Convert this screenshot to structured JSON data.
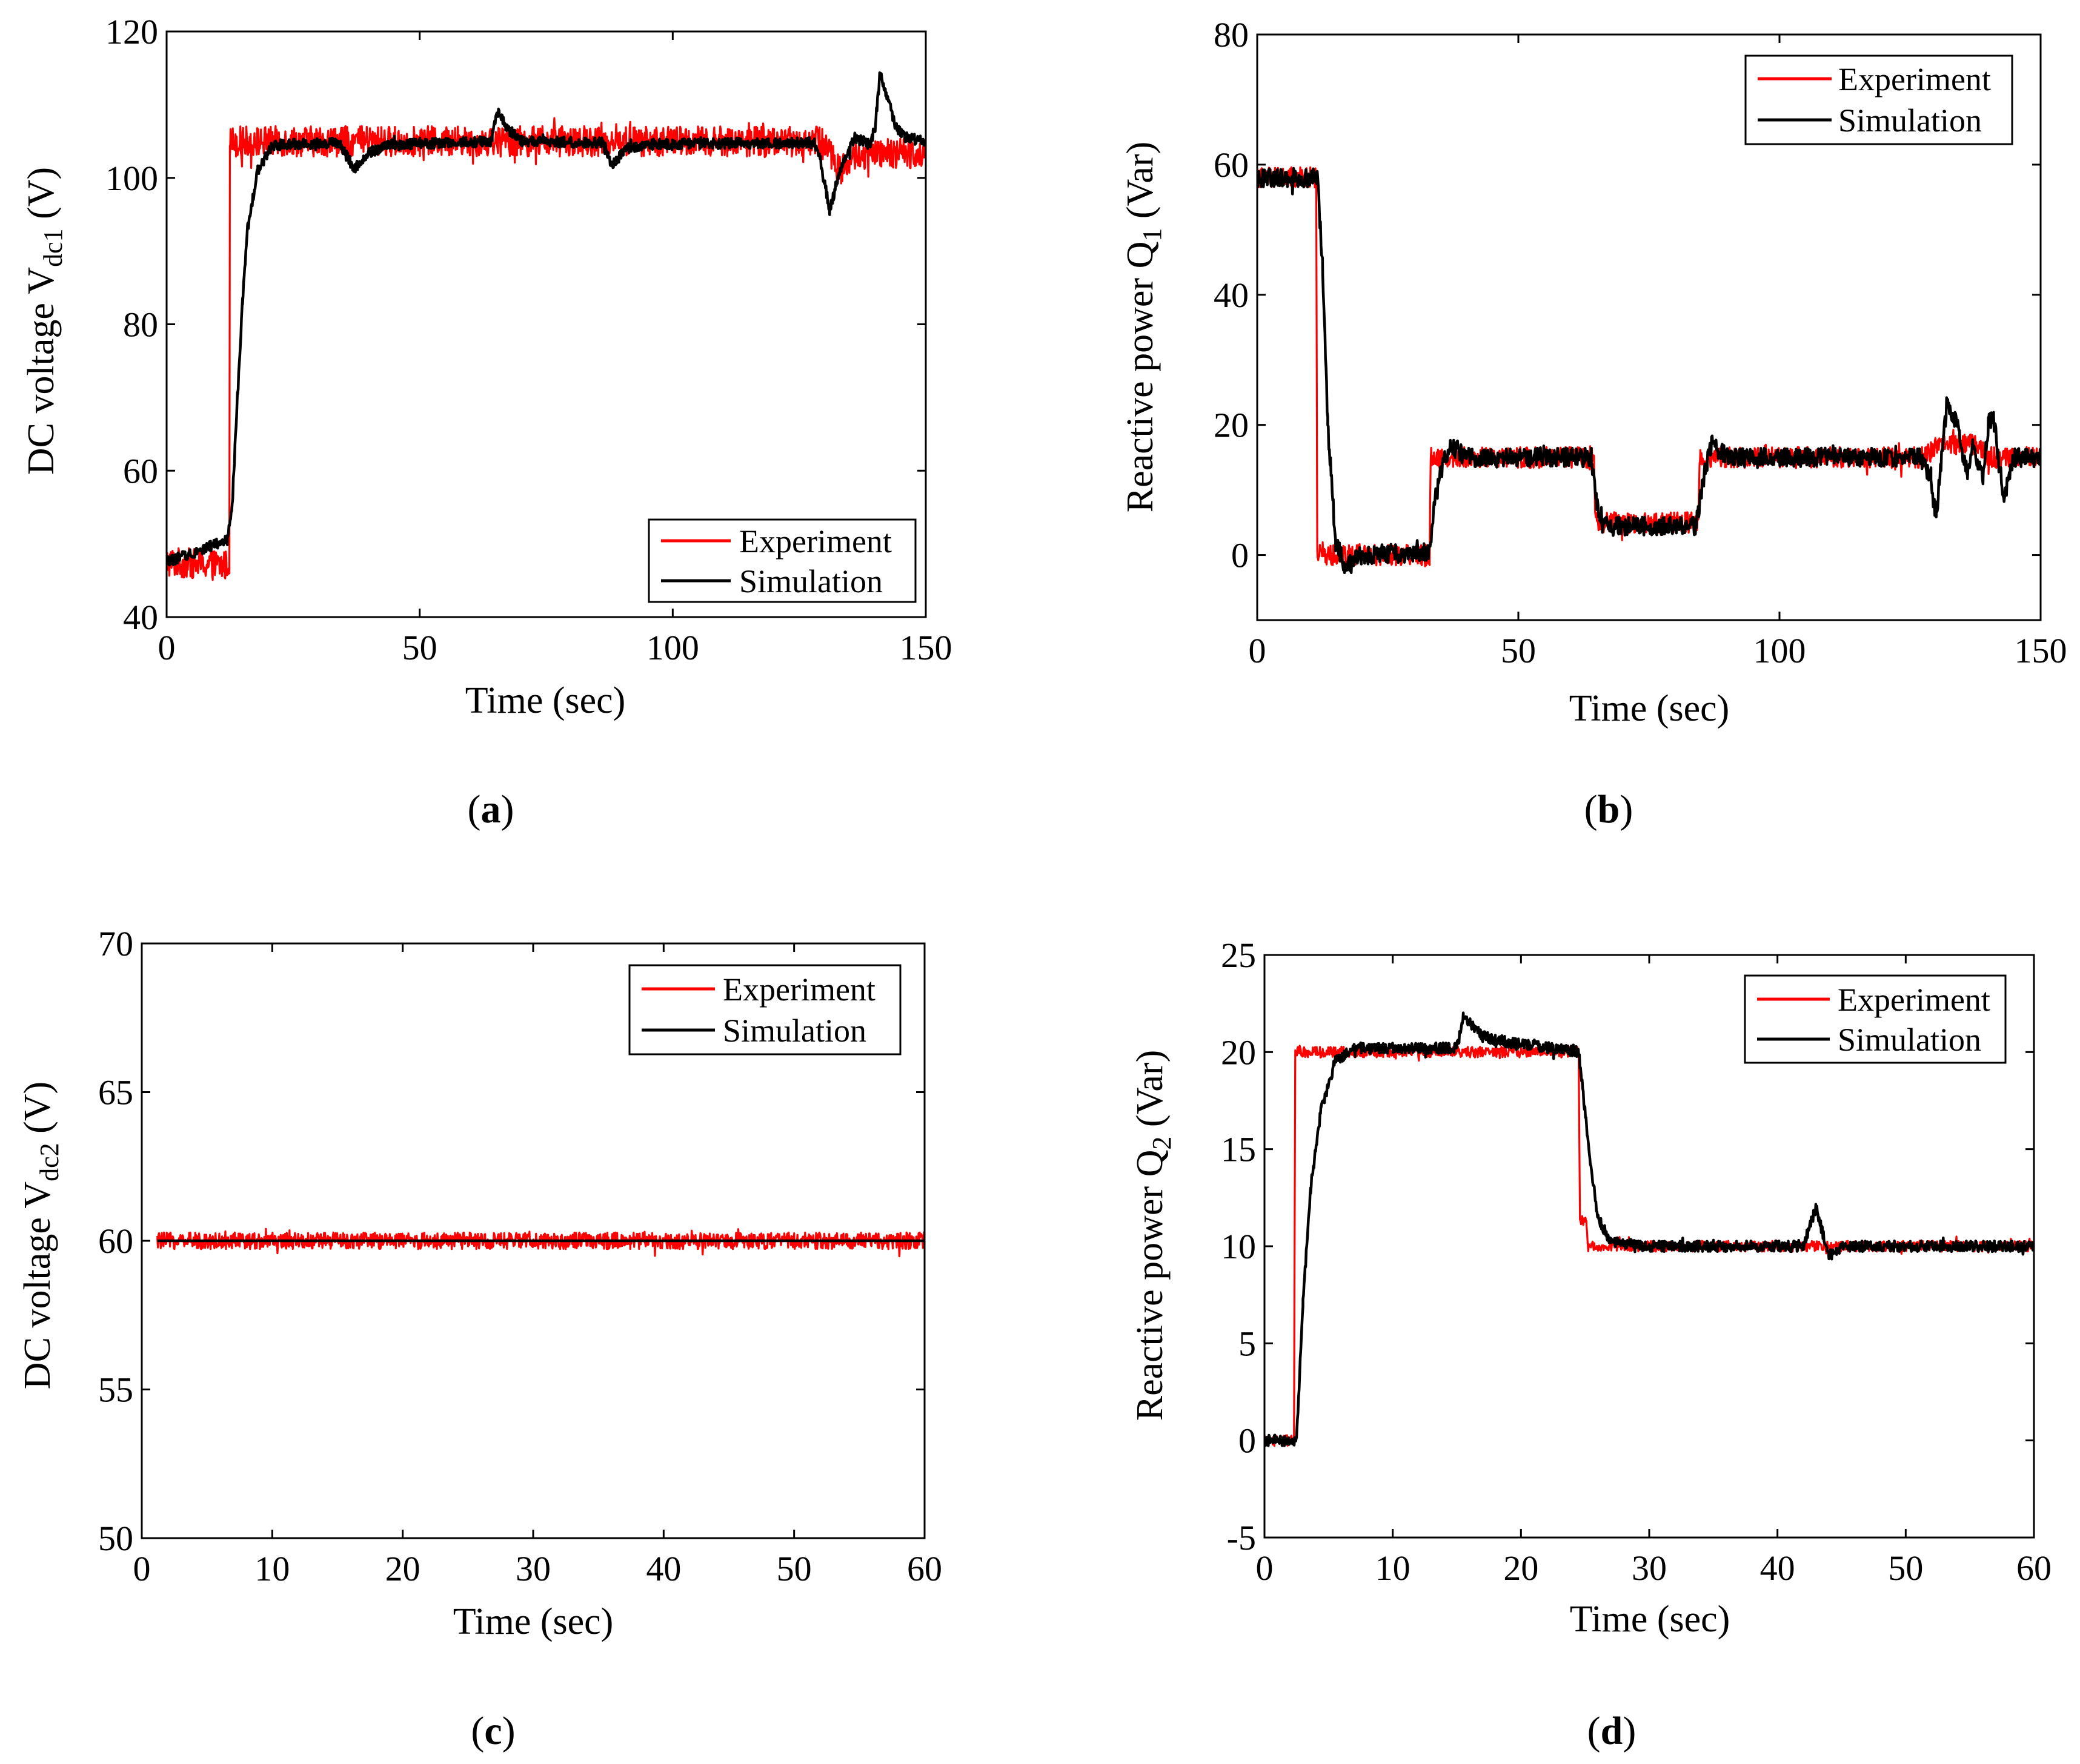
{
  "legend_labels": {
    "experiment": "Experiment",
    "simulation": "Simulation"
  },
  "colors": {
    "experiment": "#ff0000",
    "simulation": "#000000",
    "axes": "#000000",
    "background": "#ffffff"
  },
  "chart_data": [
    {
      "id": "a",
      "type": "line",
      "panel_label": "a",
      "xlabel": "Time (sec)",
      "ylabel": {
        "main": "DC voltage V",
        "sub": "dc1",
        "suffix": " (V)"
      },
      "xlim": [
        0,
        150
      ],
      "ylim": [
        40,
        120
      ],
      "xticks": [
        0,
        50,
        100,
        150
      ],
      "yticks": [
        40,
        60,
        80,
        100,
        120
      ],
      "legend_position": "bottom-right",
      "series": [
        {
          "name": "Experiment",
          "color": "#ff0000",
          "noise": 2.6,
          "points": [
            [
              0,
              47.5
            ],
            [
              12.4,
              47.0
            ],
            [
              12.5,
              105
            ],
            [
              130,
              105
            ],
            [
              133,
              101
            ],
            [
              136,
              103
            ],
            [
              150,
              103.5
            ]
          ]
        },
        {
          "name": "Simulation",
          "color": "#000000",
          "noise": 0.9,
          "points": [
            [
              0,
              47.5
            ],
            [
              12,
              50.5
            ],
            [
              13,
              56
            ],
            [
              14,
              70
            ],
            [
              15,
              83
            ],
            [
              16,
              93
            ],
            [
              18,
              101
            ],
            [
              21,
              104.5
            ],
            [
              34,
              104.8
            ],
            [
              36,
              102.5
            ],
            [
              37,
              101.2
            ],
            [
              40,
              103.5
            ],
            [
              44,
              104.5
            ],
            [
              64,
              105
            ],
            [
              65.5,
              109
            ],
            [
              67,
              107
            ],
            [
              70,
              105
            ],
            [
              86,
              104.8
            ],
            [
              88,
              101.8
            ],
            [
              91,
              104
            ],
            [
              96,
              104.6
            ],
            [
              128,
              104.8
            ],
            [
              129,
              103
            ],
            [
              131,
              95.5
            ],
            [
              133,
              101
            ],
            [
              136,
              105.5
            ],
            [
              139,
              104.5
            ],
            [
              140,
              107
            ],
            [
              141,
              114.5
            ],
            [
              142,
              112
            ],
            [
              144,
              107
            ],
            [
              146,
              105.5
            ],
            [
              150,
              105
            ]
          ]
        }
      ]
    },
    {
      "id": "b",
      "type": "line",
      "panel_label": "b",
      "xlabel": "Time (sec)",
      "ylabel": {
        "main": "Reactive power Q",
        "sub": "1",
        "suffix": " (Var)"
      },
      "xlim": [
        0,
        150
      ],
      "ylim": [
        -10,
        80
      ],
      "xticks": [
        0,
        50,
        100,
        150
      ],
      "yticks": [
        0,
        20,
        40,
        60,
        80
      ],
      "legend_position": "top-right",
      "series": [
        {
          "name": "Experiment",
          "color": "#ff0000",
          "noise": 2.0,
          "points": [
            [
              0,
              58
            ],
            [
              11.3,
              58
            ],
            [
              11.5,
              0
            ],
            [
              33,
              0
            ],
            [
              33.2,
              15
            ],
            [
              64.5,
              15
            ],
            [
              64.7,
              5
            ],
            [
              84.5,
              5
            ],
            [
              84.7,
              15
            ],
            [
              128,
              15
            ],
            [
              130,
              17
            ],
            [
              138,
              17
            ],
            [
              140,
              15
            ],
            [
              150,
              15
            ]
          ]
        },
        {
          "name": "Simulation",
          "color": "#000000",
          "noise": 1.8,
          "points": [
            [
              0,
              58
            ],
            [
              11.5,
              58
            ],
            [
              12.5,
              45
            ],
            [
              13.5,
              20
            ],
            [
              15,
              2
            ],
            [
              17,
              -2
            ],
            [
              20,
              0
            ],
            [
              33,
              0.5
            ],
            [
              34,
              8
            ],
            [
              35.5,
              14
            ],
            [
              37,
              17
            ],
            [
              40,
              15
            ],
            [
              64,
              15
            ],
            [
              65,
              8
            ],
            [
              66.5,
              4.5
            ],
            [
              84,
              4.5
            ],
            [
              85.5,
              12
            ],
            [
              87,
              17
            ],
            [
              90,
              15
            ],
            [
              127,
              15
            ],
            [
              129,
              12
            ],
            [
              130,
              6
            ],
            [
              132,
              23
            ],
            [
              134,
              20
            ],
            [
              136,
              12
            ],
            [
              137,
              17
            ],
            [
              139,
              12
            ],
            [
              140,
              20
            ],
            [
              141,
              22
            ],
            [
              142,
              14
            ],
            [
              143,
              9
            ],
            [
              145,
              15
            ],
            [
              150,
              15
            ]
          ]
        }
      ]
    },
    {
      "id": "c",
      "type": "line",
      "panel_label": "c",
      "xlabel": "Time (sec)",
      "ylabel": {
        "main": "DC voltage V",
        "sub": "dc2",
        "suffix": " (V)"
      },
      "xlim": [
        0,
        60
      ],
      "ylim": [
        50,
        70
      ],
      "xticks": [
        0,
        10,
        20,
        30,
        40,
        50,
        60
      ],
      "yticks": [
        50,
        55,
        60,
        65,
        70
      ],
      "legend_position": "top-right",
      "series": [
        {
          "name": "Experiment",
          "color": "#ff0000",
          "noise": 0.35,
          "points": [
            [
              1.2,
              60
            ],
            [
              60,
              60
            ]
          ]
        },
        {
          "name": "Simulation",
          "color": "#000000",
          "noise": 0,
          "points": [
            [
              1.2,
              60
            ],
            [
              60,
              60
            ]
          ]
        }
      ]
    },
    {
      "id": "d",
      "type": "line",
      "panel_label": "d",
      "xlabel": "Time (sec)",
      "ylabel": {
        "main": "Reactive power Q",
        "sub": "2",
        "suffix": " (Var)"
      },
      "xlim": [
        0,
        60
      ],
      "ylim": [
        -5,
        25
      ],
      "xticks": [
        0,
        10,
        20,
        30,
        40,
        50,
        60
      ],
      "yticks": [
        -5,
        0,
        5,
        10,
        15,
        20,
        25
      ],
      "legend_position": "top-right",
      "series": [
        {
          "name": "Experiment",
          "color": "#ff0000",
          "noise": 0.35,
          "points": [
            [
              0,
              0
            ],
            [
              2.3,
              0
            ],
            [
              2.4,
              20
            ],
            [
              24.5,
              20
            ],
            [
              24.6,
              11.3
            ],
            [
              25.1,
              11.3
            ],
            [
              25.2,
              10
            ],
            [
              60,
              10
            ]
          ]
        },
        {
          "name": "Simulation",
          "color": "#000000",
          "noise": 0.35,
          "points": [
            [
              0,
              0
            ],
            [
              2.5,
              0
            ],
            [
              3,
              7
            ],
            [
              3.6,
              13
            ],
            [
              4.4,
              17
            ],
            [
              5.5,
              19.5
            ],
            [
              7,
              20.2
            ],
            [
              15,
              20.2
            ],
            [
              15.5,
              21.8
            ],
            [
              17,
              20.8
            ],
            [
              19,
              20.5
            ],
            [
              24.5,
              20
            ],
            [
              25.3,
              15
            ],
            [
              26,
              11.5
            ],
            [
              27,
              10.2
            ],
            [
              30,
              10
            ],
            [
              42,
              10
            ],
            [
              43,
              12
            ],
            [
              44,
              9.5
            ],
            [
              45,
              10
            ],
            [
              60,
              10
            ]
          ]
        }
      ]
    }
  ]
}
